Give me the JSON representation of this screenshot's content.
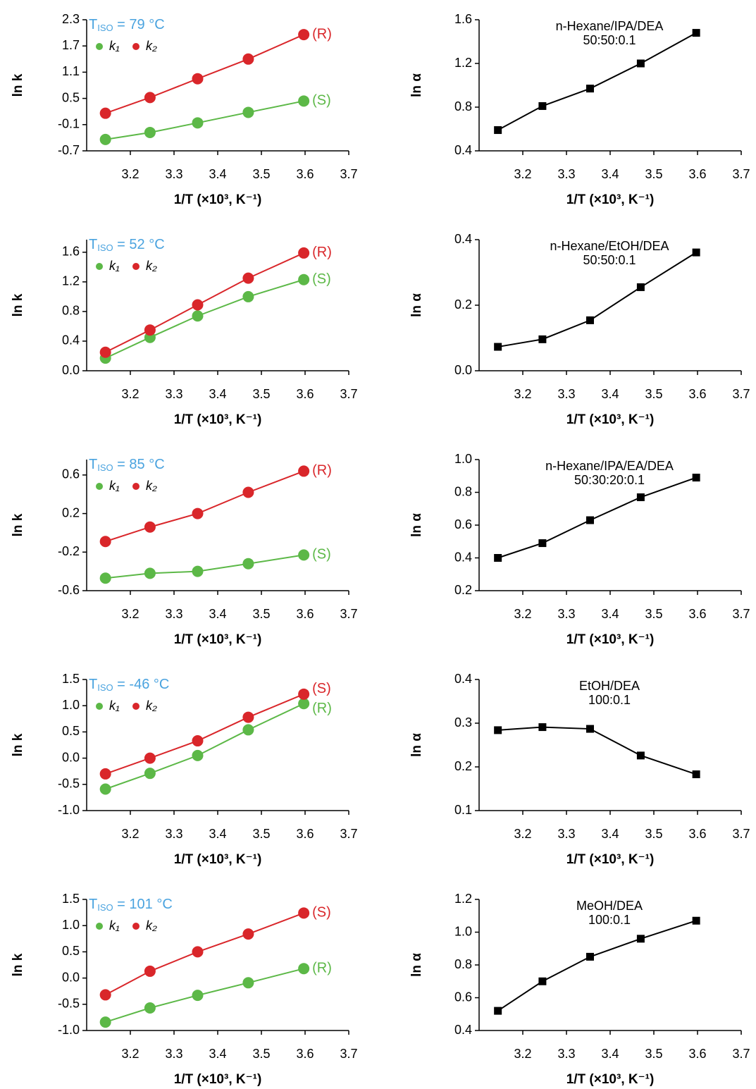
{
  "chart_data": [
    {
      "type": "line",
      "annotation": {
        "text": "T",
        "subscript": "ISO",
        "suffix": " = 79 °C"
      },
      "x": [
        3.143,
        3.245,
        3.354,
        3.47,
        3.597
      ],
      "series": [
        {
          "name": "k₁",
          "color": "#5cb847",
          "marker": "circle",
          "end_label": "(S)",
          "values": [
            -0.44,
            -0.28,
            -0.06,
            0.18,
            0.44
          ]
        },
        {
          "name": "k₂",
          "color": "#d9262a",
          "marker": "circle",
          "end_label": "(R)",
          "values": [
            0.16,
            0.52,
            0.95,
            1.4,
            1.96
          ]
        }
      ],
      "xlabel": "1/T (×10³, K⁻¹)",
      "ylabel": "ln k",
      "xlim": [
        3.1,
        3.7
      ],
      "xticks": [
        3.2,
        3.3,
        3.4,
        3.5,
        3.6,
        3.7
      ],
      "ylim": [
        -0.7,
        2.3
      ],
      "yticks": [
        -0.7,
        -0.1,
        0.5,
        1.1,
        1.7,
        2.3
      ]
    },
    {
      "type": "line",
      "title": "n-Hexane/IPA/DEA",
      "subtitle": "50:50:0.1",
      "x": [
        3.143,
        3.245,
        3.354,
        3.47,
        3.597
      ],
      "series": [
        {
          "color": "#000000",
          "marker": "square",
          "values": [
            0.59,
            0.81,
            0.97,
            1.2,
            1.48
          ]
        }
      ],
      "xlabel": "1/T (×10³, K⁻¹)",
      "ylabel": "ln α",
      "xlim": [
        3.1,
        3.7
      ],
      "xticks": [
        3.2,
        3.3,
        3.4,
        3.5,
        3.6,
        3.7
      ],
      "ylim": [
        0.4,
        1.6
      ],
      "yticks": [
        0.4,
        0.8,
        1.2,
        1.6
      ]
    },
    {
      "type": "line",
      "annotation": {
        "text": "T",
        "subscript": "ISO",
        "suffix": " = 52 °C"
      },
      "x": [
        3.143,
        3.245,
        3.354,
        3.47,
        3.597
      ],
      "series": [
        {
          "name": "k₁",
          "color": "#5cb847",
          "marker": "circle",
          "end_label": "(S)",
          "values": [
            0.17,
            0.45,
            0.74,
            1.0,
            1.23
          ]
        },
        {
          "name": "k₂",
          "color": "#d9262a",
          "marker": "circle",
          "end_label": "(R)",
          "values": [
            0.25,
            0.55,
            0.89,
            1.25,
            1.59
          ]
        }
      ],
      "xlabel": "1/T (×10³, K⁻¹)",
      "ylabel": "ln k",
      "xlim": [
        3.1,
        3.7
      ],
      "xticks": [
        3.2,
        3.3,
        3.4,
        3.5,
        3.6,
        3.7
      ],
      "ylim": [
        0,
        1.77
      ],
      "yticks": [
        {
          "value": 0,
          "label": "0.0"
        },
        0.4,
        0.8,
        1.2,
        1.6
      ]
    },
    {
      "type": "line",
      "title": "n-Hexane/EtOH/DEA",
      "subtitle": "50:50:0.1",
      "x": [
        3.143,
        3.245,
        3.354,
        3.47,
        3.597
      ],
      "series": [
        {
          "color": "#000000",
          "marker": "square",
          "values": [
            0.073,
            0.096,
            0.154,
            0.255,
            0.361
          ]
        }
      ],
      "xlabel": "1/T (×10³, K⁻¹)",
      "ylabel": "ln α",
      "xlim": [
        3.1,
        3.7
      ],
      "xticks": [
        3.2,
        3.3,
        3.4,
        3.5,
        3.6,
        3.7
      ],
      "ylim": [
        0,
        0.4
      ],
      "yticks": [
        {
          "value": 0,
          "label": "0.0"
        },
        0.2,
        0.4
      ]
    },
    {
      "type": "line",
      "annotation": {
        "text": "T",
        "subscript": "ISO",
        "suffix": " = 85 °C"
      },
      "x": [
        3.143,
        3.245,
        3.354,
        3.47,
        3.597
      ],
      "series": [
        {
          "name": "k₁",
          "color": "#5cb847",
          "marker": "circle",
          "end_label": "(S)",
          "values": [
            -0.47,
            -0.42,
            -0.4,
            -0.32,
            -0.23
          ]
        },
        {
          "name": "k₂",
          "color": "#d9262a",
          "marker": "circle",
          "end_label": "(R)",
          "values": [
            -0.09,
            0.06,
            0.2,
            0.42,
            0.64
          ]
        }
      ],
      "xlabel": "1/T (×10³, K⁻¹)",
      "ylabel": "ln k",
      "xlim": [
        3.1,
        3.7
      ],
      "xticks": [
        3.2,
        3.3,
        3.4,
        3.5,
        3.6,
        3.7
      ],
      "ylim": [
        -0.6,
        0.76
      ],
      "yticks": [
        -0.6,
        -0.2,
        0.2,
        0.6
      ]
    },
    {
      "type": "line",
      "title": "n-Hexane/IPA/EA/DEA",
      "subtitle": "50:30:20:0.1",
      "x": [
        3.143,
        3.245,
        3.354,
        3.47,
        3.597
      ],
      "series": [
        {
          "color": "#000000",
          "marker": "square",
          "values": [
            0.4,
            0.49,
            0.63,
            0.77,
            0.89
          ]
        }
      ],
      "xlabel": "1/T (×10³, K⁻¹)",
      "ylabel": "ln α",
      "xlim": [
        3.1,
        3.7
      ],
      "xticks": [
        3.2,
        3.3,
        3.4,
        3.5,
        3.6,
        3.7
      ],
      "ylim": [
        0.2,
        1.0
      ],
      "yticks": [
        0.2,
        0.4,
        0.6,
        0.8,
        {
          "value": 1.0,
          "label": "1.0"
        }
      ]
    },
    {
      "type": "line",
      "annotation": {
        "text": "T",
        "subscript": "ISO",
        "suffix": " = -46 °C"
      },
      "x": [
        3.143,
        3.245,
        3.354,
        3.47,
        3.597
      ],
      "series": [
        {
          "name": "k₁",
          "color": "#5cb847",
          "marker": "circle",
          "end_label": "(R)",
          "values": [
            -0.59,
            -0.29,
            0.05,
            0.54,
            1.04
          ]
        },
        {
          "name": "k₂",
          "color": "#d9262a",
          "marker": "circle",
          "end_label": "(S)",
          "values": [
            -0.3,
            0.0,
            0.33,
            0.78,
            1.22
          ]
        }
      ],
      "xlabel": "1/T (×10³, K⁻¹)",
      "ylabel": "ln k",
      "xlim": [
        3.1,
        3.7
      ],
      "xticks": [
        3.2,
        3.3,
        3.4,
        3.5,
        3.6,
        3.7
      ],
      "ylim": [
        -1.0,
        1.5
      ],
      "yticks": [
        {
          "value": -1.0,
          "label": "-1.0"
        },
        -0.5,
        {
          "value": 0,
          "label": "0.0"
        },
        0.5,
        {
          "value": 1.0,
          "label": "1.0"
        },
        1.5
      ]
    },
    {
      "type": "line",
      "title": "EtOH/DEA",
      "subtitle": "100:0.1",
      "x": [
        3.143,
        3.245,
        3.354,
        3.47,
        3.597
      ],
      "series": [
        {
          "color": "#000000",
          "marker": "square",
          "values": [
            0.284,
            0.291,
            0.287,
            0.226,
            0.183
          ]
        }
      ],
      "xlabel": "1/T (×10³, K⁻¹)",
      "ylabel": "ln α",
      "xlim": [
        3.1,
        3.7
      ],
      "xticks": [
        3.2,
        3.3,
        3.4,
        3.5,
        3.6,
        3.7
      ],
      "ylim": [
        0.1,
        0.4
      ],
      "yticks": [
        0.1,
        0.2,
        0.3,
        0.4
      ]
    },
    {
      "type": "line",
      "annotation": {
        "text": "T",
        "subscript": "ISO",
        "suffix": " = 101 °C"
      },
      "x": [
        3.143,
        3.245,
        3.354,
        3.47,
        3.597
      ],
      "series": [
        {
          "name": "k₁",
          "color": "#5cb847",
          "marker": "circle",
          "end_label": "(R)",
          "values": [
            -0.84,
            -0.57,
            -0.33,
            -0.09,
            0.18
          ]
        },
        {
          "name": "k₂",
          "color": "#d9262a",
          "marker": "circle",
          "end_label": "(S)",
          "values": [
            -0.32,
            0.13,
            0.5,
            0.84,
            1.24
          ]
        }
      ],
      "xlabel": "1/T (×10³, K⁻¹)",
      "ylabel": "ln k",
      "xlim": [
        3.1,
        3.7
      ],
      "xticks": [
        3.2,
        3.3,
        3.4,
        3.5,
        3.6,
        3.7
      ],
      "ylim": [
        -1.0,
        1.5
      ],
      "yticks": [
        {
          "value": -1.0,
          "label": "-1.0"
        },
        -0.5,
        {
          "value": 0,
          "label": "0.0"
        },
        0.5,
        {
          "value": 1.0,
          "label": "1.0"
        },
        1.5
      ]
    },
    {
      "type": "line",
      "title": "MeOH/DEA",
      "subtitle": "100:0.1",
      "x": [
        3.143,
        3.245,
        3.354,
        3.47,
        3.597
      ],
      "series": [
        {
          "color": "#000000",
          "marker": "square",
          "values": [
            0.52,
            0.7,
            0.85,
            0.96,
            1.07
          ]
        }
      ],
      "xlabel": "1/T (×10³, K⁻¹)",
      "ylabel": "ln α",
      "xlim": [
        3.1,
        3.7
      ],
      "xticks": [
        3.2,
        3.3,
        3.4,
        3.5,
        3.6,
        3.7
      ],
      "ylim": [
        0.4,
        1.2
      ],
      "yticks": [
        0.4,
        0.6,
        0.8,
        {
          "value": 1.0,
          "label": "1.0"
        },
        1.2
      ]
    }
  ]
}
